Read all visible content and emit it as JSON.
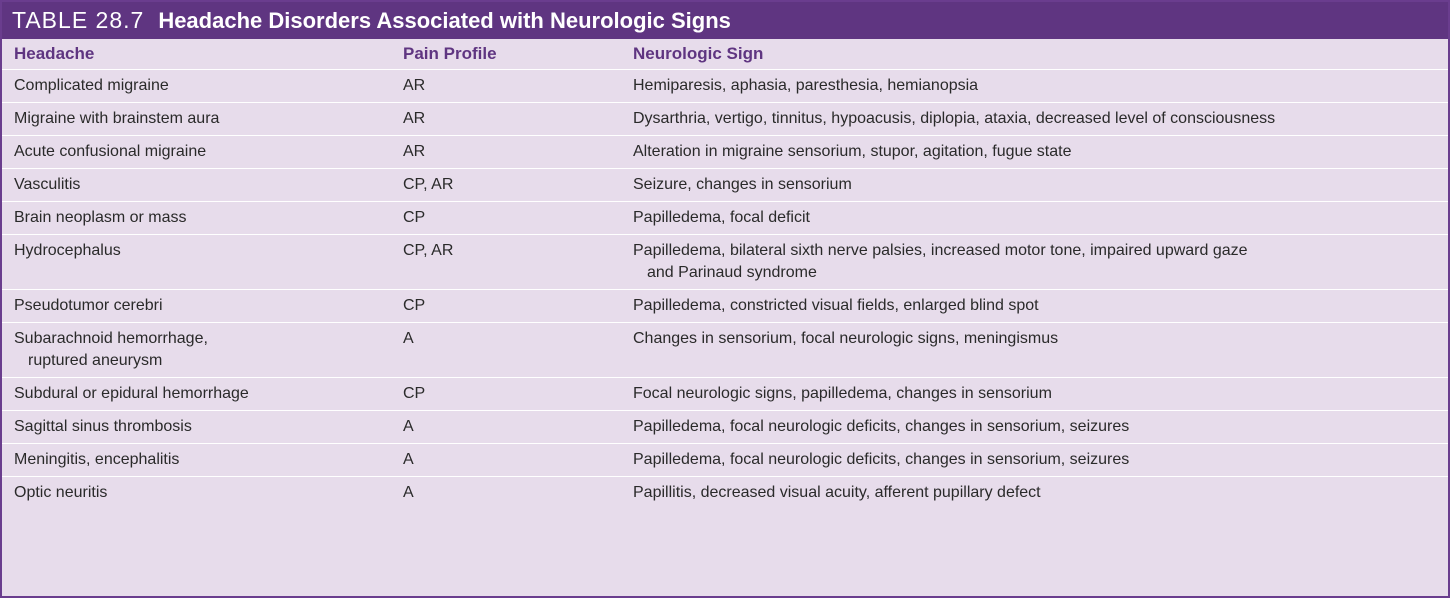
{
  "table": {
    "number": "TABLE 28.7",
    "title": "Headache Disorders Associated with Neurologic Signs",
    "headers": {
      "headache": "Headache",
      "pain_profile": "Pain Profile",
      "neurologic_sign": "Neurologic Sign"
    },
    "rows": [
      {
        "headache": [
          "Complicated migraine"
        ],
        "pain_profile": "AR",
        "neurologic_sign": [
          "Hemiparesis, aphasia, paresthesia, hemianopsia"
        ]
      },
      {
        "headache": [
          "Migraine with brainstem aura"
        ],
        "pain_profile": "AR",
        "neurologic_sign": [
          "Dysarthria, vertigo, tinnitus, hypoacusis, diplopia, ataxia, decreased level of consciousness"
        ]
      },
      {
        "headache": [
          "Acute confusional migraine"
        ],
        "pain_profile": "AR",
        "neurologic_sign": [
          "Alteration in migraine sensorium, stupor, agitation, fugue state"
        ]
      },
      {
        "headache": [
          "Vasculitis"
        ],
        "pain_profile": "CP, AR",
        "neurologic_sign": [
          "Seizure, changes in sensorium"
        ]
      },
      {
        "headache": [
          "Brain neoplasm or mass"
        ],
        "pain_profile": "CP",
        "neurologic_sign": [
          "Papilledema, focal deficit"
        ]
      },
      {
        "headache": [
          "Hydrocephalus"
        ],
        "pain_profile": "CP, AR",
        "neurologic_sign": [
          "Papilledema, bilateral sixth nerve palsies, increased motor tone, impaired upward gaze",
          "and Parinaud syndrome"
        ]
      },
      {
        "headache": [
          "Pseudotumor cerebri"
        ],
        "pain_profile": "CP",
        "neurologic_sign": [
          "Papilledema, constricted visual fields, enlarged blind spot"
        ]
      },
      {
        "headache": [
          "Subarachnoid hemorrhage,",
          "ruptured aneurysm"
        ],
        "pain_profile": "A",
        "neurologic_sign": [
          "Changes in sensorium, focal neurologic signs, meningismus"
        ]
      },
      {
        "headache": [
          "Subdural or epidural hemorrhage"
        ],
        "pain_profile": "CP",
        "neurologic_sign": [
          "Focal neurologic signs, papilledema, changes in sensorium"
        ]
      },
      {
        "headache": [
          "Sagittal sinus thrombosis"
        ],
        "pain_profile": "A",
        "neurologic_sign": [
          "Papilledema, focal neurologic deficits, changes in sensorium, seizures"
        ]
      },
      {
        "headache": [
          "Meningitis, encephalitis"
        ],
        "pain_profile": "A",
        "neurologic_sign": [
          "Papilledema, focal neurologic deficits, changes in sensorium, seizures"
        ]
      },
      {
        "headache": [
          "Optic neuritis"
        ],
        "pain_profile": "A",
        "neurologic_sign": [
          "Papillitis, decreased visual acuity, afferent pupillary defect"
        ]
      }
    ]
  }
}
